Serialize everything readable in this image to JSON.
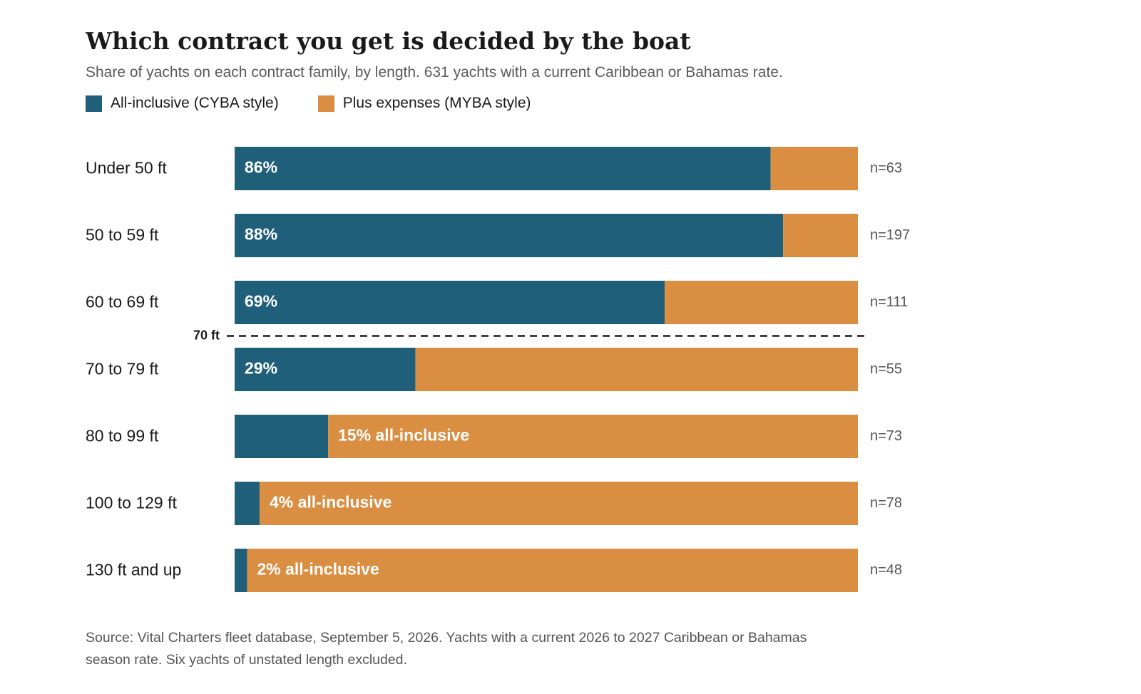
{
  "title": "Which contract you get is decided by the boat",
  "subtitle": "Share of yachts on each contract family, by length. 631 yachts with a current Caribbean or Bahamas rate.",
  "legend": [
    {
      "label": "All-inclusive (CYBA style)",
      "color": "#1f5f7a"
    },
    {
      "label": "Plus expenses (MYBA style)",
      "color": "#d98e42"
    }
  ],
  "chart_data": {
    "type": "bar",
    "orientation": "horizontal",
    "stacked": true,
    "categories": [
      "Under 50 ft",
      "50 to 59 ft",
      "60 to 69 ft",
      "70 to 79 ft",
      "80 to 99 ft",
      "100 to 129 ft",
      "130 ft and up"
    ],
    "series": [
      {
        "name": "All-inclusive (CYBA style)",
        "values": [
          86,
          88,
          69,
          29,
          15,
          4,
          2
        ],
        "color": "#1f5f7a"
      },
      {
        "name": "Plus expenses (MYBA style)",
        "values": [
          14,
          12,
          31,
          71,
          85,
          96,
          98
        ],
        "color": "#d98e42"
      }
    ],
    "data_labels": [
      "86%",
      "88%",
      "69%",
      "29%",
      "15% all-inclusive",
      "4% all-inclusive",
      "2% all-inclusive"
    ],
    "n_labels": [
      "n=63",
      "n=197",
      "n=111",
      "n=55",
      "n=73",
      "n=78",
      "n=48"
    ],
    "reference_line": {
      "label": "70 ft",
      "after_category_index": 2,
      "style": "dashed"
    },
    "xlim": [
      0,
      100
    ],
    "grid": false
  },
  "source": "Source: Vital Charters fleet database, September 5, 2026. Yachts with a current 2026 to 2027 Caribbean or Bahamas season rate. Six yachts of unstated length excluded."
}
